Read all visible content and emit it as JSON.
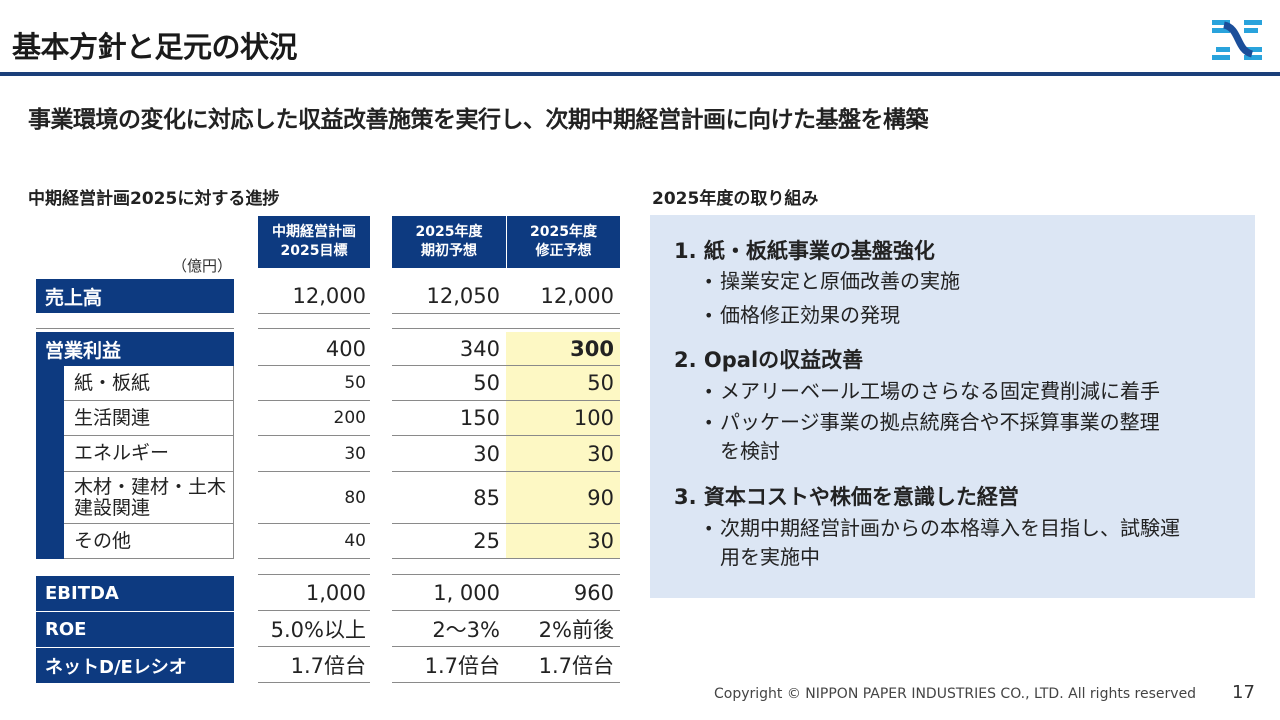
{
  "header": {
    "title": "基本方針と足元の状況"
  },
  "subtitle": "事業環境の変化に対応した収益改善施策を実行し、次期中期経営計画に向けた基盤を構築",
  "left": {
    "heading": "中期経営計画2025に対する進捗",
    "unit": "（億円）",
    "columns": [
      {
        "line1": "中期経営計画",
        "line2": "2025目標"
      },
      {
        "line1": "2025年度",
        "line2": "期初予想"
      },
      {
        "line1": "2025年度",
        "line2": "修正予想"
      }
    ],
    "rows": {
      "sales": {
        "label": "売上高",
        "v": [
          "12,000",
          "12,050",
          "12,000"
        ]
      },
      "op": {
        "label": "営業利益",
        "v": [
          "400",
          "340",
          "300"
        ]
      },
      "paper": {
        "label": "紙・板紙",
        "v": [
          "50",
          "50",
          "50"
        ]
      },
      "living": {
        "label": "生活関連",
        "v": [
          "200",
          "150",
          "100"
        ]
      },
      "energy": {
        "label": "エネルギー",
        "v": [
          "30",
          "30",
          "30"
        ]
      },
      "wood": {
        "label1": "木材・建材・土木",
        "label2": "建設関連",
        "v": [
          "80",
          "85",
          "90"
        ]
      },
      "other": {
        "label": "その他",
        "v": [
          "40",
          "25",
          "30"
        ]
      },
      "ebitda": {
        "label": "EBITDA",
        "v": [
          "1,000",
          "1, 000",
          "960"
        ]
      },
      "roe": {
        "label": "ROE",
        "v": [
          "5.0%以上",
          "2～3%",
          "2%前後"
        ]
      },
      "de": {
        "label": "ネットD/Eレシオ",
        "v": [
          "1.7倍台",
          "1.7倍台",
          "1.7倍台"
        ]
      }
    }
  },
  "right": {
    "heading": "2025年度の取り組み",
    "items": [
      {
        "title": "1. 紙・板紙事業の基盤強化",
        "bullets": [
          "操業安定と原価改善の実施",
          "価格修正効果の発現"
        ]
      },
      {
        "title": "2. Opalの収益改善",
        "bullets": [
          "メアリーベール工場のさらなる固定費削減に着手",
          "パッケージ事業の拠点統廃合や不採算事業の整理",
          "を検討"
        ]
      },
      {
        "title": "3. 資本コストや株価を意識した経営",
        "bullets": [
          "次期中期経営計画からの本格導入を目指し、試験運",
          "用を実施中"
        ]
      }
    ]
  },
  "footer": {
    "copyright": "Copyright © NIPPON PAPER INDUSTRIES CO., LTD. All rights reserved",
    "page": "17"
  },
  "colors": {
    "navy": "#0d3a80",
    "highlight": "#fdf8c4",
    "panel": "#dce6f4"
  }
}
